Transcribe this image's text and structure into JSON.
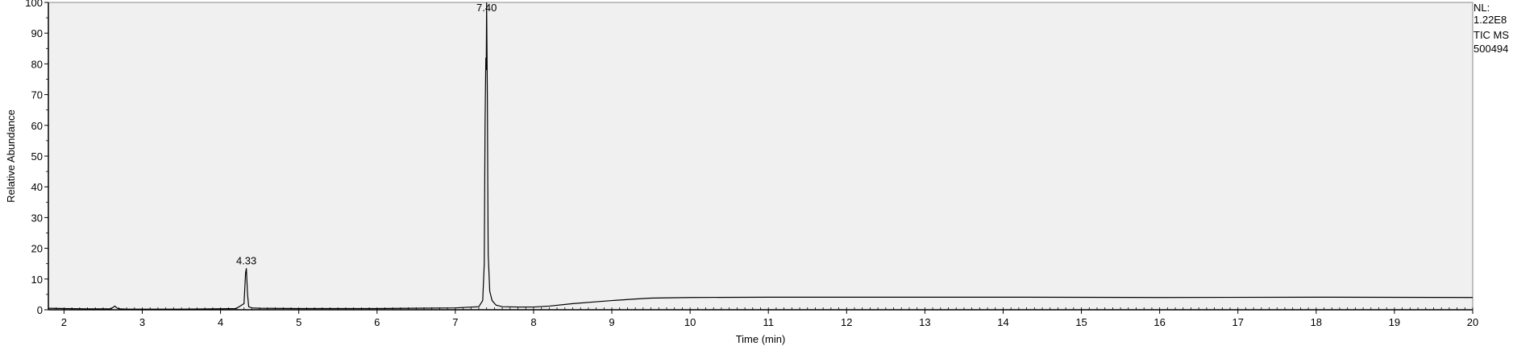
{
  "chart_data": {
    "type": "line",
    "title": "",
    "xlabel": "Time (min)",
    "ylabel": "Relative Abundance",
    "xlim": [
      1.8,
      20
    ],
    "ylim": [
      0,
      100
    ],
    "x_ticks": [
      2,
      3,
      4,
      5,
      6,
      7,
      8,
      9,
      10,
      11,
      12,
      13,
      14,
      15,
      16,
      17,
      18,
      19,
      20
    ],
    "y_ticks": [
      0,
      10,
      20,
      30,
      40,
      50,
      60,
      70,
      80,
      90,
      100
    ],
    "grid": false,
    "plot_background": "#f0f0f0",
    "line_color": "#000000",
    "series": [
      {
        "x": [
          1.8,
          2.0,
          2.3,
          2.6,
          2.65,
          2.68,
          2.72,
          2.8,
          3.0,
          3.5,
          3.9,
          4.2,
          4.3,
          4.32,
          4.33,
          4.345,
          4.36,
          4.4,
          4.5,
          5.0,
          6.0,
          7.0,
          7.3,
          7.35,
          7.37,
          7.38,
          7.39,
          7.395,
          7.4,
          7.405,
          7.41,
          7.415,
          7.42,
          7.44,
          7.47,
          7.52,
          7.6,
          7.8,
          8.0,
          8.2,
          8.5,
          8.8,
          9.0,
          9.3,
          9.5,
          10.0,
          11.0,
          12.0,
          14.0,
          16.0,
          18.0,
          20.0
        ],
        "y": [
          0.5,
          0.4,
          0.3,
          0.3,
          1.2,
          0.5,
          0.3,
          0.2,
          0.2,
          0.2,
          0.3,
          0.4,
          2.0,
          12.0,
          13.5,
          5.0,
          1.0,
          0.6,
          0.5,
          0.4,
          0.4,
          0.6,
          1.0,
          3.0,
          15.0,
          60.0,
          82.0,
          78.0,
          100.0,
          84.0,
          68.0,
          40.0,
          18.0,
          6.0,
          3.0,
          1.5,
          1.0,
          0.9,
          0.9,
          1.2,
          2.0,
          2.6,
          3.0,
          3.5,
          3.8,
          4.0,
          4.1,
          4.1,
          4.1,
          4.0,
          4.1,
          4.0
        ]
      }
    ],
    "peak_labels": [
      {
        "x": 4.33,
        "y": 13.5,
        "label": "4.33"
      },
      {
        "x": 7.4,
        "y": 100,
        "label": "7.40"
      }
    ]
  },
  "info": {
    "lines": [
      "NL:",
      "1.22E8",
      "TIC  MS",
      "500494"
    ]
  }
}
